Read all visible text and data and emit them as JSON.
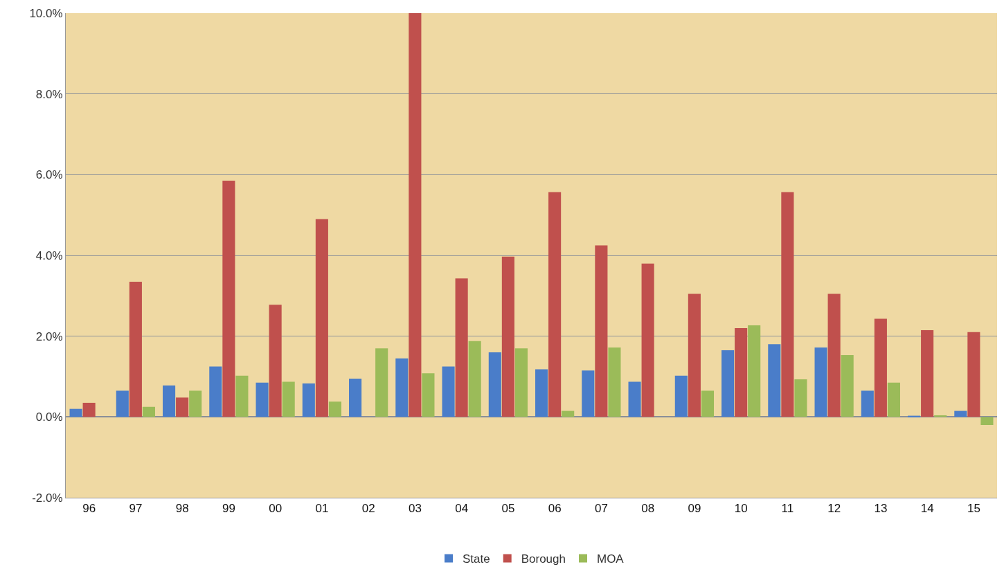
{
  "chart_data": {
    "type": "bar",
    "categories": [
      "96",
      "97",
      "98",
      "99",
      "00",
      "01",
      "02",
      "03",
      "04",
      "05",
      "06",
      "07",
      "08",
      "09",
      "10",
      "11",
      "12",
      "13",
      "14",
      "15"
    ],
    "series": [
      {
        "name": "State",
        "color": "#4a7dc9",
        "values": [
          0.2,
          0.65,
          0.78,
          1.25,
          0.85,
          0.83,
          0.95,
          1.45,
          1.25,
          1.6,
          1.18,
          1.15,
          0.87,
          1.02,
          1.65,
          1.8,
          1.72,
          0.65,
          0.03,
          0.15
        ]
      },
      {
        "name": "Borough",
        "color": "#c0504d",
        "values": [
          0.35,
          3.35,
          0.48,
          5.85,
          2.78,
          4.9,
          null,
          10.0,
          3.43,
          3.97,
          5.57,
          4.25,
          3.8,
          3.05,
          2.2,
          5.57,
          3.05,
          2.43,
          2.15,
          2.1
        ]
      },
      {
        "name": "MOA",
        "color": "#9bbb59",
        "values": [
          null,
          0.25,
          0.65,
          1.02,
          0.87,
          0.38,
          1.7,
          1.08,
          1.88,
          1.7,
          0.15,
          1.72,
          null,
          0.65,
          2.27,
          0.93,
          1.53,
          0.85,
          0.04,
          -0.2
        ]
      }
    ],
    "ylim": [
      -2,
      10
    ],
    "yticks": [
      {
        "value": -2,
        "label": "-2.0%"
      },
      {
        "value": 0,
        "label": "0.0%"
      },
      {
        "value": 2,
        "label": "2.0%"
      },
      {
        "value": 4,
        "label": "4.0%"
      },
      {
        "value": 6,
        "label": "6.0%"
      },
      {
        "value": 8,
        "label": "8.0%"
      },
      {
        "value": 10,
        "label": "10.0%"
      }
    ],
    "grid": "y",
    "legend": "bottom"
  }
}
